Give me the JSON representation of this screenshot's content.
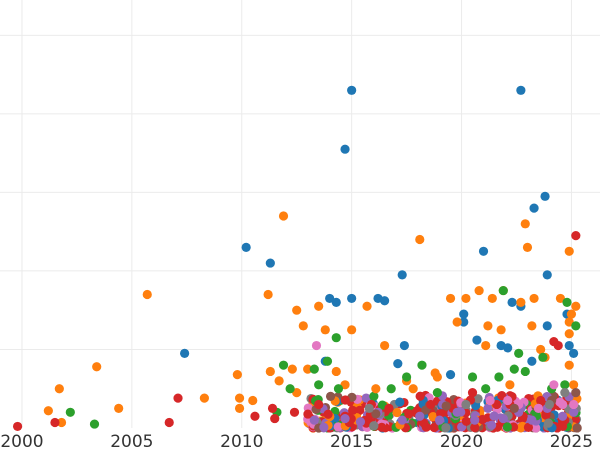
{
  "chart_data": {
    "type": "scatter",
    "title": "",
    "xlabel": "",
    "ylabel": "",
    "xlim": [
      1999.0,
      2026.3
    ],
    "ylim": [
      0,
      5.45
    ],
    "x_ticks": [
      2000,
      2005,
      2010,
      2015,
      2020,
      2025
    ],
    "x_tick_labels": [
      "2000",
      "2005",
      "2010",
      "2015",
      "2020",
      "2025"
    ],
    "y_gridlines": [
      1,
      2,
      3,
      4,
      5
    ],
    "grid": true,
    "legend": "none",
    "series": [
      {
        "color": "#1f77b4",
        "points": [
          [
            2007.4,
            0.95
          ],
          [
            2010.2,
            2.3
          ],
          [
            2011.3,
            2.1
          ],
          [
            2013.8,
            0.85
          ],
          [
            2014.0,
            1.65
          ],
          [
            2014.3,
            1.6
          ],
          [
            2014.7,
            3.55
          ],
          [
            2015.0,
            1.65
          ],
          [
            2015.0,
            4.3
          ],
          [
            2016.2,
            1.65
          ],
          [
            2016.5,
            1.62
          ],
          [
            2017.1,
            0.82
          ],
          [
            2017.3,
            1.95
          ],
          [
            2017.4,
            1.05
          ],
          [
            2019.5,
            0.68
          ],
          [
            2020.1,
            1.35
          ],
          [
            2020.1,
            1.45
          ],
          [
            2020.7,
            1.12
          ],
          [
            2021.0,
            2.25
          ],
          [
            2021.8,
            1.05
          ],
          [
            2022.3,
            1.6
          ],
          [
            2022.7,
            1.55
          ],
          [
            2022.7,
            4.3
          ],
          [
            2023.3,
            2.8
          ],
          [
            2023.8,
            2.95
          ],
          [
            2023.9,
            1.3
          ],
          [
            2023.9,
            1.95
          ],
          [
            2024.8,
            1.45
          ],
          [
            2024.9,
            1.05
          ],
          [
            2025.1,
            0.95
          ],
          [
            2022.1,
            1.02
          ],
          [
            2023.2,
            0.85
          ]
        ]
      },
      {
        "color": "#ff7f0e",
        "points": [
          [
            2001.2,
            0.22
          ],
          [
            2001.7,
            0.5
          ],
          [
            2001.8,
            0.07
          ],
          [
            2003.4,
            0.78
          ],
          [
            2004.4,
            0.25
          ],
          [
            2005.7,
            1.7
          ],
          [
            2008.3,
            0.38
          ],
          [
            2009.8,
            0.68
          ],
          [
            2009.9,
            0.38
          ],
          [
            2009.9,
            0.25
          ],
          [
            2010.5,
            0.35
          ],
          [
            2011.2,
            1.7
          ],
          [
            2011.3,
            0.72
          ],
          [
            2011.7,
            0.6
          ],
          [
            2011.9,
            2.7
          ],
          [
            2012.3,
            0.75
          ],
          [
            2012.5,
            1.5
          ],
          [
            2012.5,
            0.45
          ],
          [
            2012.8,
            1.3
          ],
          [
            2013.5,
            1.55
          ],
          [
            2013.0,
            0.75
          ],
          [
            2013.8,
            1.25
          ],
          [
            2014.3,
            0.72
          ],
          [
            2014.7,
            0.55
          ],
          [
            2015.0,
            1.25
          ],
          [
            2015.7,
            1.55
          ],
          [
            2016.1,
            0.5
          ],
          [
            2016.5,
            1.05
          ],
          [
            2017.5,
            0.6
          ],
          [
            2017.8,
            0.5
          ],
          [
            2018.1,
            2.4
          ],
          [
            2018.8,
            0.7
          ],
          [
            2018.9,
            0.65
          ],
          [
            2019.5,
            1.65
          ],
          [
            2019.8,
            1.35
          ],
          [
            2020.2,
            1.65
          ],
          [
            2020.8,
            1.75
          ],
          [
            2021.1,
            1.05
          ],
          [
            2021.2,
            1.3
          ],
          [
            2021.4,
            1.65
          ],
          [
            2021.8,
            1.25
          ],
          [
            2021.9,
            1.75
          ],
          [
            2022.2,
            0.55
          ],
          [
            2022.7,
            1.6
          ],
          [
            2022.9,
            2.6
          ],
          [
            2023.0,
            2.3
          ],
          [
            2023.2,
            1.3
          ],
          [
            2023.3,
            1.65
          ],
          [
            2023.6,
            1.0
          ],
          [
            2023.8,
            0.9
          ],
          [
            2024.5,
            1.65
          ],
          [
            2024.9,
            1.2
          ],
          [
            2024.9,
            2.25
          ],
          [
            2024.9,
            1.35
          ],
          [
            2025.0,
            1.45
          ],
          [
            2025.2,
            1.55
          ],
          [
            2025.1,
            0.55
          ],
          [
            2024.9,
            0.8
          ]
        ]
      },
      {
        "color": "#2ca02c",
        "points": [
          [
            2002.2,
            0.2
          ],
          [
            2003.3,
            0.05
          ],
          [
            2011.6,
            0.2
          ],
          [
            2011.9,
            0.8
          ],
          [
            2012.2,
            0.5
          ],
          [
            2013.3,
            0.75
          ],
          [
            2013.5,
            0.55
          ],
          [
            2013.9,
            0.85
          ],
          [
            2014.4,
            0.5
          ],
          [
            2014.3,
            1.15
          ],
          [
            2016.8,
            0.5
          ],
          [
            2017.5,
            0.65
          ],
          [
            2018.2,
            0.8
          ],
          [
            2018.9,
            0.45
          ],
          [
            2020.5,
            0.65
          ],
          [
            2021.1,
            0.5
          ],
          [
            2021.7,
            0.65
          ],
          [
            2021.9,
            1.75
          ],
          [
            2022.6,
            0.95
          ],
          [
            2022.9,
            0.72
          ],
          [
            2023.7,
            0.9
          ],
          [
            2024.1,
            0.5
          ],
          [
            2024.7,
            0.55
          ],
          [
            2025.2,
            1.3
          ],
          [
            2024.8,
            1.6
          ],
          [
            2022.4,
            0.75
          ]
        ]
      },
      {
        "color": "#d62728",
        "points": [
          [
            1999.8,
            0.02
          ],
          [
            2001.5,
            0.07
          ],
          [
            2006.7,
            0.07
          ],
          [
            2007.1,
            0.38
          ],
          [
            2010.6,
            0.15
          ],
          [
            2011.4,
            0.25
          ],
          [
            2011.5,
            0.12
          ],
          [
            2012.4,
            0.2
          ],
          [
            2013.5,
            0.3
          ],
          [
            2014.7,
            0.15
          ],
          [
            2015.9,
            0.3
          ],
          [
            2016.7,
            0.25
          ],
          [
            2017.6,
            0.18
          ],
          [
            2018.6,
            0.3
          ],
          [
            2019.6,
            0.25
          ],
          [
            2020.5,
            0.45
          ],
          [
            2021.6,
            0.3
          ],
          [
            2022.8,
            0.15
          ],
          [
            2023.6,
            0.35
          ],
          [
            2024.4,
            1.05
          ],
          [
            2024.7,
            0.1
          ],
          [
            2025.2,
            2.45
          ],
          [
            2024.6,
            0.02
          ],
          [
            2024.2,
            1.1
          ]
        ]
      },
      {
        "color": "#9467bd",
        "points": [
          [
            2013.3,
            0.1
          ],
          [
            2014.7,
            0.12
          ],
          [
            2015.4,
            0.08
          ],
          [
            2016.2,
            0.2
          ],
          [
            2017.3,
            0.1
          ],
          [
            2018.1,
            0.15
          ],
          [
            2019.0,
            0.1
          ],
          [
            2019.8,
            0.2
          ],
          [
            2020.6,
            0.1
          ],
          [
            2021.2,
            0.25
          ],
          [
            2021.9,
            0.12
          ],
          [
            2022.6,
            0.2
          ],
          [
            2023.2,
            0.1
          ],
          [
            2023.9,
            0.25
          ],
          [
            2024.6,
            0.15
          ],
          [
            2025.1,
            0.2
          ]
        ]
      },
      {
        "color": "#e377c2",
        "points": [
          [
            2013.4,
            1.05
          ],
          [
            2021.3,
            0.35
          ],
          [
            2022.1,
            0.35
          ],
          [
            2022.6,
            0.3
          ],
          [
            2023.5,
            0.25
          ],
          [
            2024.2,
            0.55
          ],
          [
            2024.6,
            0.3
          ],
          [
            2025.1,
            0.3
          ]
        ]
      },
      {
        "color": "#8c564b",
        "points": [
          [
            2016.1,
            0.18
          ],
          [
            2019.3,
            0.28
          ],
          [
            2022.4,
            0.25
          ],
          [
            2024.1,
            0.35
          ],
          [
            2025.2,
            0.45
          ]
        ]
      },
      {
        "color": "#7f7f7f",
        "points": [
          [
            2015.8,
            0.25
          ],
          [
            2020.2,
            0.3
          ],
          [
            2024.0,
            0.3
          ],
          [
            2024.7,
            0.45
          ]
        ]
      }
    ]
  }
}
